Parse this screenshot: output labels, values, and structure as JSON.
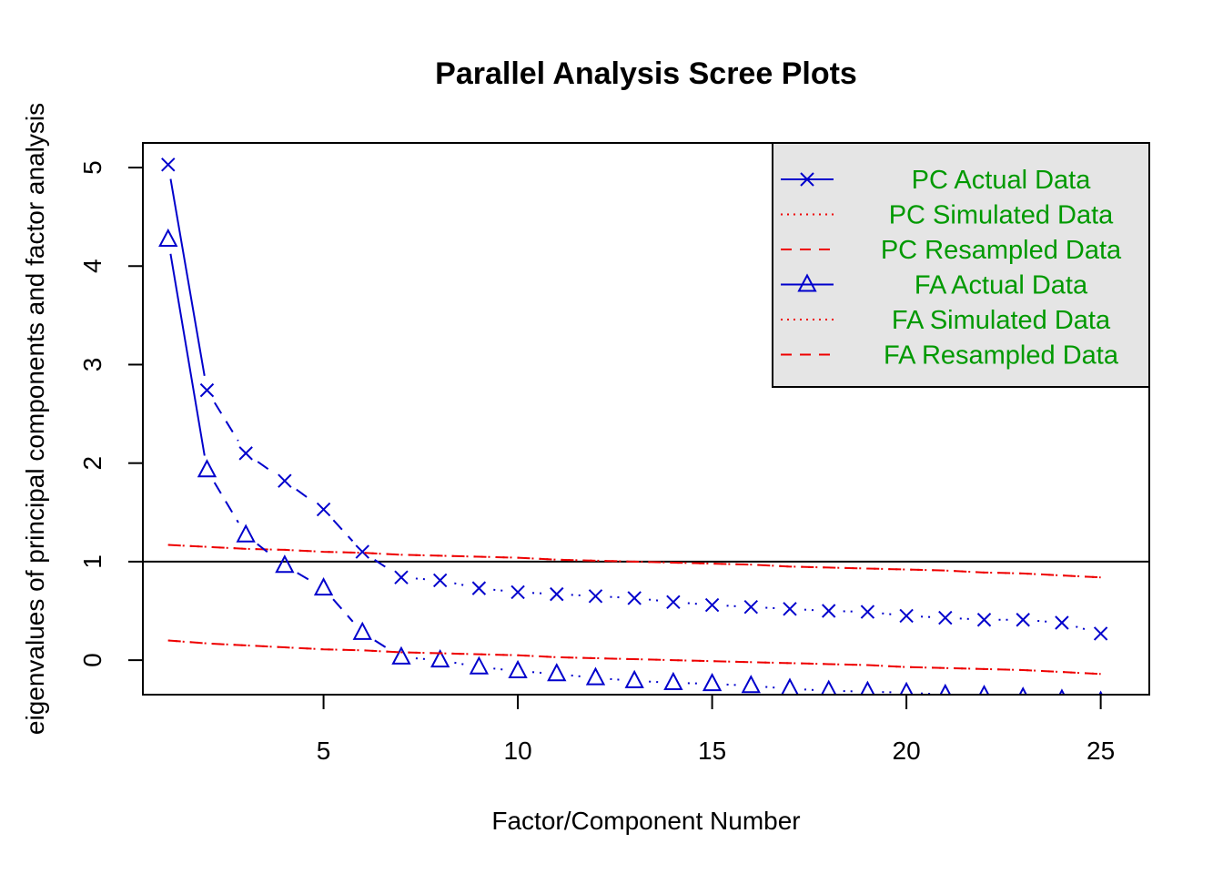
{
  "chart_data": {
    "type": "line",
    "title": "Parallel Analysis Scree Plots",
    "xlabel": "Factor/Component Number",
    "ylabel": "eigenvalues of principal components and factor analysis",
    "xlim": [
      0.35,
      26.25
    ],
    "ylim": [
      -0.35,
      5.25
    ],
    "xticks": [
      5,
      10,
      15,
      20,
      25
    ],
    "yticks": [
      0,
      1,
      2,
      3,
      4,
      5
    ],
    "reference_line": 1,
    "x": [
      1,
      2,
      3,
      4,
      5,
      6,
      7,
      8,
      9,
      10,
      11,
      12,
      13,
      14,
      15,
      16,
      17,
      18,
      19,
      20,
      21,
      22,
      23,
      24,
      25
    ],
    "legend_placement": "top-right",
    "series": [
      {
        "name": "PC  Actual Data",
        "color": "#0000cc",
        "marker": "x",
        "values": [
          5.03,
          2.74,
          2.1,
          1.82,
          1.53,
          1.1,
          0.84,
          0.81,
          0.73,
          0.69,
          0.67,
          0.65,
          0.63,
          0.59,
          0.56,
          0.54,
          0.52,
          0.5,
          0.49,
          0.45,
          0.43,
          0.41,
          0.41,
          0.38,
          0.27
        ]
      },
      {
        "name": "PC  Simulated Data",
        "color": "#ee0000",
        "marker": "none",
        "style": "dotted",
        "values": [
          1.17,
          1.15,
          1.13,
          1.12,
          1.1,
          1.09,
          1.07,
          1.06,
          1.05,
          1.04,
          1.02,
          1.01,
          1.0,
          0.99,
          0.98,
          0.97,
          0.95,
          0.94,
          0.93,
          0.92,
          0.91,
          0.89,
          0.88,
          0.86,
          0.84
        ]
      },
      {
        "name": "PC  Resampled Data",
        "color": "#ee0000",
        "marker": "none",
        "style": "dashed",
        "values": [
          1.17,
          1.15,
          1.13,
          1.12,
          1.1,
          1.09,
          1.07,
          1.06,
          1.05,
          1.04,
          1.02,
          1.01,
          1.0,
          0.99,
          0.98,
          0.97,
          0.95,
          0.94,
          0.93,
          0.92,
          0.91,
          0.89,
          0.88,
          0.86,
          0.84
        ]
      },
      {
        "name": "FA  Actual Data",
        "color": "#0000cc",
        "marker": "triangle",
        "values": [
          4.27,
          1.93,
          1.27,
          0.96,
          0.73,
          0.28,
          0.03,
          0.0,
          -0.07,
          -0.11,
          -0.14,
          -0.18,
          -0.21,
          -0.23,
          -0.24,
          -0.26,
          -0.29,
          -0.31,
          -0.32,
          -0.33,
          -0.35,
          -0.36,
          -0.38,
          -0.4,
          -0.42
        ]
      },
      {
        "name": "FA  Simulated Data",
        "color": "#ee0000",
        "marker": "none",
        "style": "dotted",
        "values": [
          0.2,
          0.17,
          0.15,
          0.13,
          0.11,
          0.1,
          0.08,
          0.07,
          0.06,
          0.05,
          0.03,
          0.02,
          0.01,
          0.0,
          -0.01,
          -0.02,
          -0.03,
          -0.04,
          -0.05,
          -0.07,
          -0.08,
          -0.09,
          -0.1,
          -0.12,
          -0.14
        ]
      },
      {
        "name": "FA  Resampled Data",
        "color": "#ee0000",
        "marker": "none",
        "style": "dashed",
        "values": [
          0.2,
          0.17,
          0.15,
          0.13,
          0.11,
          0.1,
          0.08,
          0.07,
          0.06,
          0.05,
          0.03,
          0.02,
          0.01,
          0.0,
          -0.01,
          -0.02,
          -0.03,
          -0.04,
          -0.05,
          -0.07,
          -0.08,
          -0.09,
          -0.1,
          -0.12,
          -0.14
        ]
      }
    ]
  }
}
